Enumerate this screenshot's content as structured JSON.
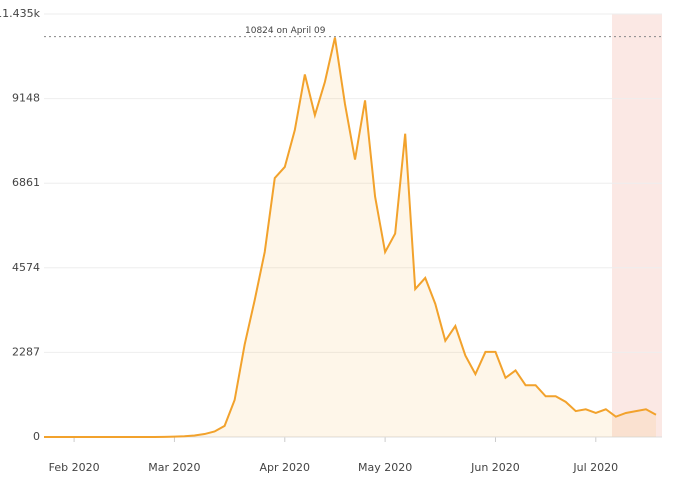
{
  "chart_data": {
    "type": "line",
    "categories": [
      null,
      null,
      null,
      "Feb 2020",
      null,
      null,
      null,
      null,
      null,
      null,
      null,
      null,
      null,
      "Mar 2020",
      null,
      null,
      null,
      null,
      null,
      null,
      null,
      null,
      null,
      null,
      "Apr 2020",
      null,
      null,
      null,
      null,
      null,
      null,
      null,
      null,
      null,
      "May 2020",
      null,
      null,
      null,
      null,
      null,
      null,
      null,
      null,
      null,
      null,
      "Jun 2020",
      null,
      null,
      null,
      null,
      null,
      null,
      null,
      null,
      null,
      "Jul 2020",
      null,
      null,
      null,
      null,
      null,
      null
    ],
    "series": [
      {
        "color": "#f2a22c",
        "values": [
          0,
          0,
          0,
          0,
          0,
          0,
          0,
          0,
          0,
          0,
          0,
          0,
          5,
          10,
          20,
          40,
          80,
          150,
          300,
          1000,
          2500,
          3700,
          5000,
          7000,
          7300,
          8300,
          9800,
          8700,
          9600,
          10800,
          9000,
          7500,
          9100,
          6500,
          5000,
          5500,
          8200,
          4000,
          4300,
          3600,
          2600,
          3000,
          2200,
          1700,
          2300,
          2300,
          1600,
          1800,
          1400,
          1400,
          1100,
          1100,
          950,
          700,
          750,
          650,
          750,
          550,
          650,
          700,
          750,
          600
        ]
      }
    ],
    "ylim": [
      0,
      11435
    ],
    "yticks": [
      0,
      2287,
      4574,
      6861,
      9148,
      {
        "value": 11435,
        "label": "11.435k"
      }
    ],
    "grid": true,
    "reference_line": 10824,
    "annotation": "10824 on April 09"
  }
}
